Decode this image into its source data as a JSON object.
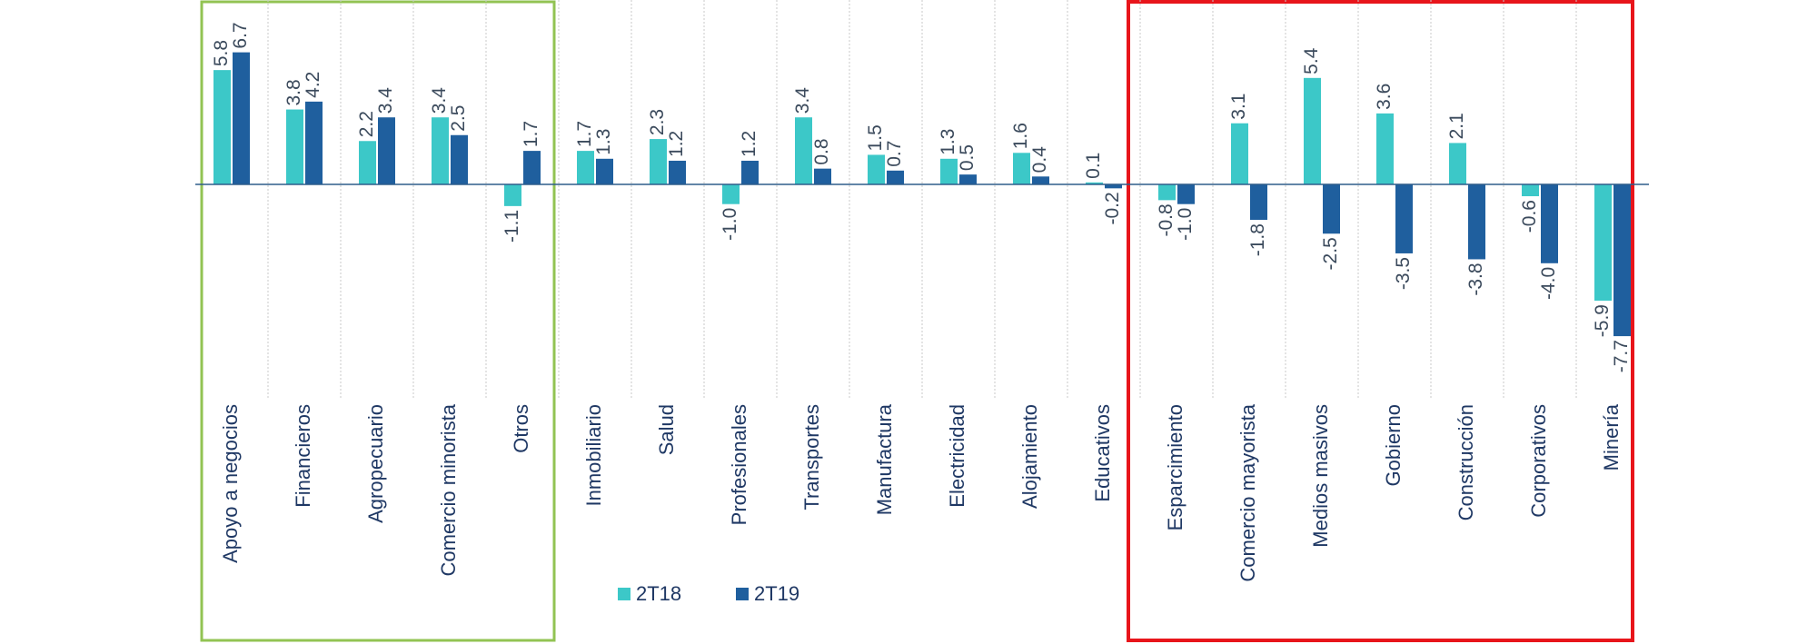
{
  "chart_data": {
    "type": "bar",
    "categories": [
      "Apoyo a negocios",
      "Financieros",
      "Agropecuario",
      "Comercio minorista",
      "Otros",
      "Inmobiliario",
      "Salud",
      "Profesionales",
      "Transportes",
      "Manufactura",
      "Electricidad",
      "Alojamiento",
      "Educativos",
      "Esparcimiento",
      "Comercio mayorista",
      "Medios masivos",
      "Gobierno",
      "Construcción",
      "Corporativos",
      "Minería"
    ],
    "series": [
      {
        "name": "2T18",
        "color": "#3cc8c8",
        "values": [
          5.8,
          3.8,
          2.2,
          3.4,
          -1.1,
          1.7,
          2.3,
          -1.0,
          3.4,
          1.5,
          1.3,
          1.6,
          0.1,
          -0.8,
          3.1,
          5.4,
          3.6,
          2.1,
          -0.6,
          -5.9
        ],
        "value_labels": [
          "5.8",
          "3.8",
          "2.2",
          "3.4",
          "-1.1",
          "1.7",
          "2.3",
          "-1.0",
          "3.4",
          "1.5",
          "1.3",
          "1.6",
          "0.1",
          "-0.8",
          "3.1",
          "5.4",
          "3.6",
          "2.1",
          "-0.6",
          "-5.9"
        ]
      },
      {
        "name": "2T19",
        "color": "#1f5f9e",
        "values": [
          6.7,
          4.2,
          3.4,
          2.5,
          1.7,
          1.3,
          1.2,
          1.2,
          0.8,
          0.7,
          0.5,
          0.4,
          -0.2,
          -1.0,
          -1.8,
          -2.5,
          -3.5,
          -3.8,
          -4.0,
          -7.7
        ],
        "value_labels": [
          "6.7",
          "4.2",
          "3.4",
          "2.5",
          "1.7",
          "1.3",
          "1.2",
          "1.2",
          "0.8",
          "0.7",
          "0.5",
          "0.4",
          "-0.2",
          "-1.0",
          "-1.8",
          "-2.5",
          "-3.5",
          "-3.8",
          "-4.0",
          "-7.7"
        ]
      }
    ],
    "ylim": [
      -8,
      8
    ]
  }
}
